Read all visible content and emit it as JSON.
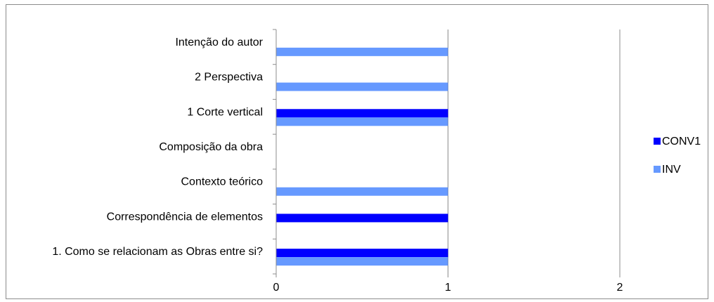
{
  "chart_data": {
    "type": "bar",
    "orientation": "horizontal",
    "categories": [
      "Intenção do autor",
      "2 Perspectiva",
      "1 Corte vertical",
      "Composição da obra",
      "Contexto teórico",
      "Correspondência de elementos",
      "1. Como se relacionam as Obras entre si?"
    ],
    "series": [
      {
        "name": "CONV1",
        "color": "#0000ff",
        "values": [
          0,
          0,
          1,
          0,
          0,
          1,
          1
        ]
      },
      {
        "name": "INV",
        "color": "#6699ff",
        "values": [
          1,
          1,
          1,
          0,
          1,
          0,
          1
        ]
      }
    ],
    "xlim": [
      0,
      2
    ],
    "x_ticks": [
      "0",
      "1",
      "2"
    ],
    "grid": "vertical",
    "legend_position": "right"
  }
}
